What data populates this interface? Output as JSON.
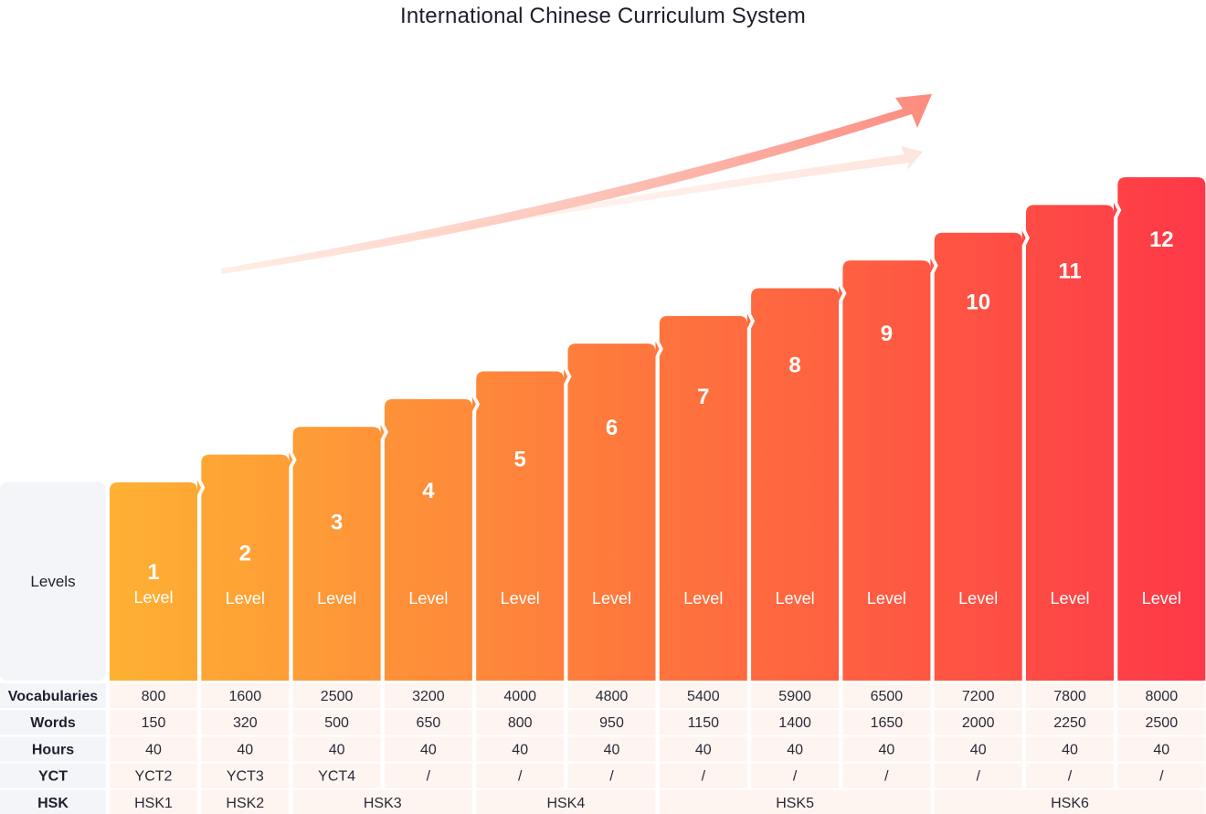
{
  "title": "International Chinese Curriculum System",
  "colors": {
    "bar_start": "#FEB133",
    "bar_end": "#FE3848",
    "header_bg": "#F4F5F9",
    "row_bg": "#FEF5F1",
    "arrow": "#FC8A7E"
  },
  "chart_data": {
    "type": "bar",
    "title": "International Chinese Curriculum System",
    "row_header": "Levels",
    "level_word": "Level",
    "categories": [
      "1",
      "2",
      "3",
      "4",
      "5",
      "6",
      "7",
      "8",
      "9",
      "10",
      "11",
      "12"
    ],
    "values": [
      1,
      2,
      3,
      4,
      5,
      6,
      7,
      8,
      9,
      10,
      11,
      12
    ],
    "ylim": [
      0,
      12
    ],
    "table": {
      "rows": [
        {
          "label": "Vocabularies",
          "values": [
            "800",
            "1600",
            "2500",
            "3200",
            "4000",
            "4800",
            "5400",
            "5900",
            "6500",
            "7200",
            "7800",
            "8000"
          ]
        },
        {
          "label": "Words",
          "values": [
            "150",
            "320",
            "500",
            "650",
            "800",
            "950",
            "1150",
            "1400",
            "1650",
            "2000",
            "2250",
            "2500"
          ]
        },
        {
          "label": "Hours",
          "values": [
            "40",
            "40",
            "40",
            "40",
            "40",
            "40",
            "40",
            "40",
            "40",
            "40",
            "40",
            "40"
          ]
        },
        {
          "label": "YCT",
          "values": [
            "YCT2",
            "YCT3",
            "YCT4",
            "/",
            "/",
            "/",
            "/",
            "/",
            "/",
            "/",
            "/",
            "/"
          ]
        }
      ],
      "hsk": {
        "label": "HSK",
        "groups": [
          {
            "label": "HSK1",
            "span": [
              1,
              1
            ]
          },
          {
            "label": "HSK2",
            "span": [
              2,
              2
            ]
          },
          {
            "label": "HSK3",
            "span": [
              3,
              4
            ]
          },
          {
            "label": "HSK4",
            "span": [
              5,
              6
            ]
          },
          {
            "label": "HSK5",
            "span": [
              7,
              9
            ]
          },
          {
            "label": "HSK6",
            "span": [
              10,
              12
            ]
          }
        ]
      }
    }
  }
}
